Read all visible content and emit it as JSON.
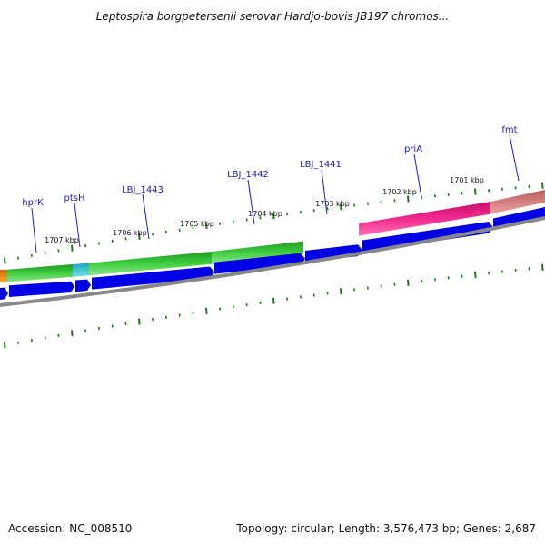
{
  "title": "Leptospira borgpetersenii serovar Hardjo-bovis JB197 chromos...",
  "accession": "Accession: NC_008510",
  "summary": "Topology: circular; Length: 3,576,473 bp; Genes: 2,687",
  "scale_labels": [
    "1701 kbp",
    "1702 kbp",
    "1703 kbp",
    "1704 kbp",
    "1705 kbp",
    "1706 kbp",
    "1707 kbp"
  ],
  "gene_labels": [
    "fmt",
    "priA",
    "LBJ_1441",
    "LBJ_1442",
    "LBJ_1443",
    "ptsH",
    "hprK"
  ],
  "colors": {
    "cds_arrow": "#0000e6",
    "backbone": "#808080",
    "ticks": "#1a7a1a",
    "label": "#1a1ad0",
    "green_feature": "#33bb33",
    "cyan_feature": "#22c8d8",
    "magenta_feature": "#ee2288",
    "salmon_feature": "#e88080",
    "orange_feature": "#ee8800"
  }
}
